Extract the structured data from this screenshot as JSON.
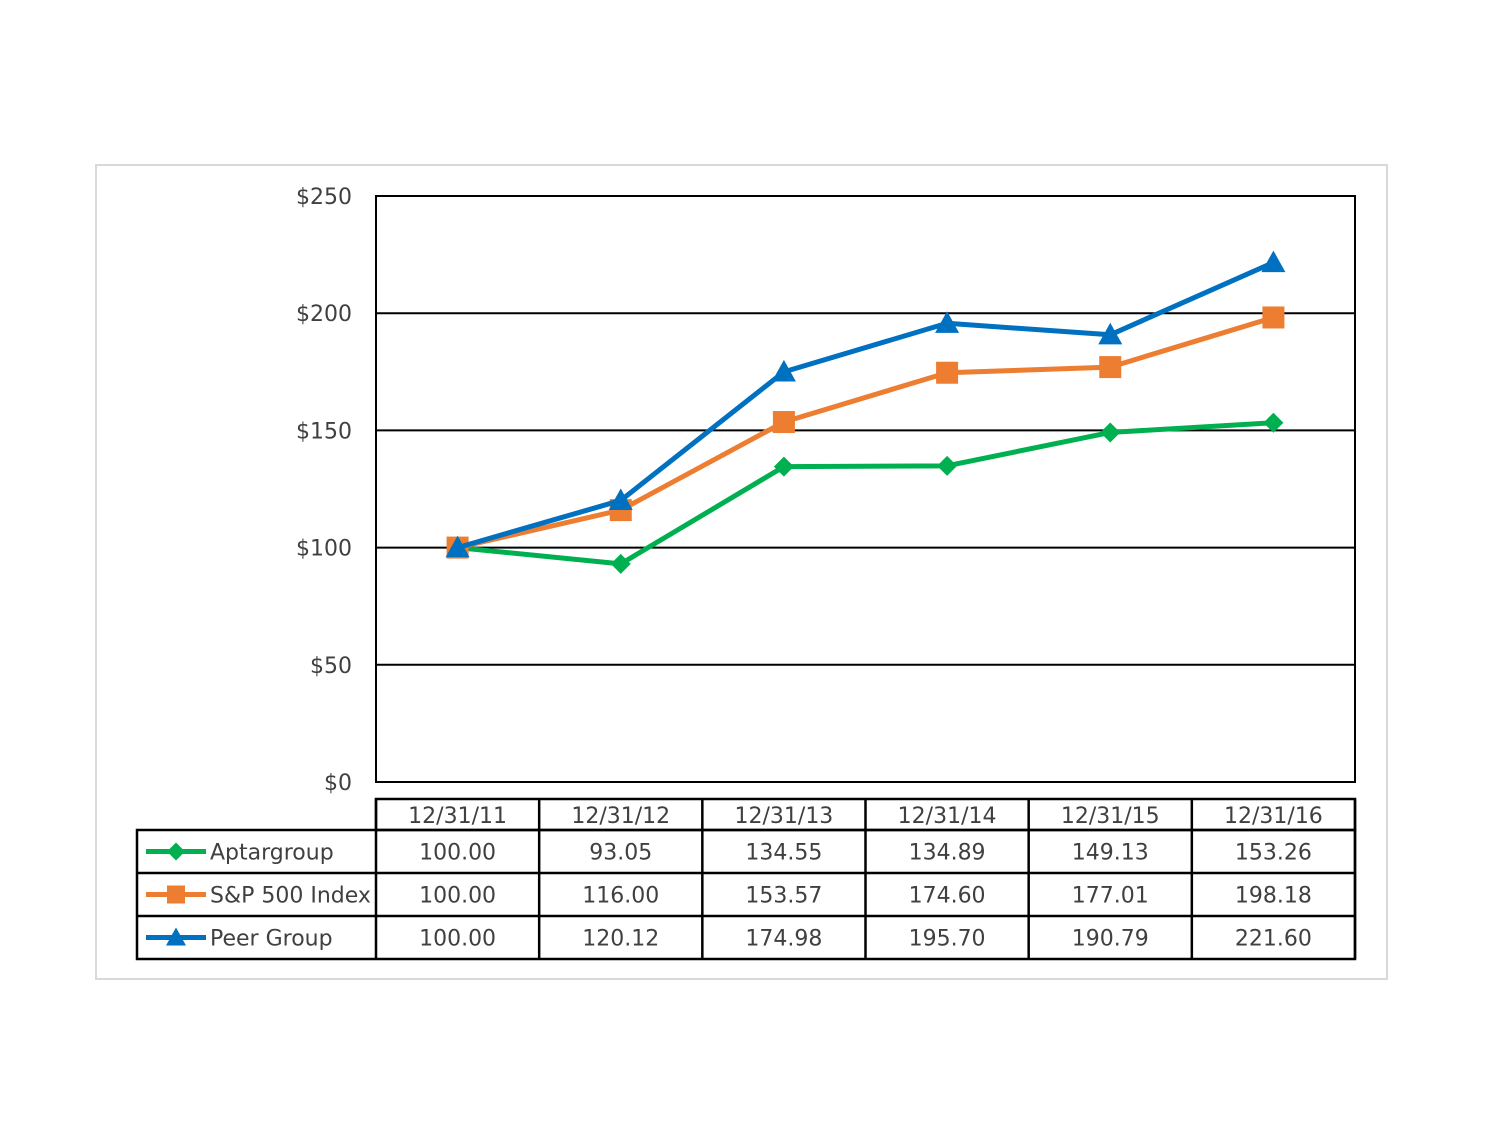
{
  "chart_data": {
    "type": "line",
    "title": "",
    "xlabel": "",
    "ylabel": "",
    "ylim": [
      0,
      250
    ],
    "y_ticks": [
      0,
      50,
      100,
      150,
      200,
      250
    ],
    "y_tick_labels": [
      "$0",
      "$50",
      "$100",
      "$150",
      "$200",
      "$250"
    ],
    "grid": true,
    "legend": "data-table",
    "categories": [
      "12/31/11",
      "12/31/12",
      "12/31/13",
      "12/31/14",
      "12/31/15",
      "12/31/16"
    ],
    "series": [
      {
        "name": "Aptargroup",
        "color": "#00b050",
        "marker": "diamond",
        "values": [
          100.0,
          93.05,
          134.55,
          134.89,
          149.13,
          153.26
        ],
        "labels": [
          "100.00",
          "93.05",
          "134.55",
          "134.89",
          "149.13",
          "153.26"
        ]
      },
      {
        "name": "S&P 500 Index",
        "color": "#ed7d31",
        "marker": "square",
        "values": [
          100.0,
          116.0,
          153.57,
          174.6,
          177.01,
          198.18
        ],
        "labels": [
          "100.00",
          "116.00",
          "153.57",
          "174.60",
          "177.01",
          "198.18"
        ]
      },
      {
        "name": "Peer Group",
        "color": "#0070c0",
        "marker": "triangle",
        "values": [
          100.0,
          120.12,
          174.98,
          195.7,
          190.79,
          221.6
        ],
        "labels": [
          "100.00",
          "120.12",
          "174.98",
          "195.70",
          "190.79",
          "221.60"
        ]
      }
    ]
  }
}
